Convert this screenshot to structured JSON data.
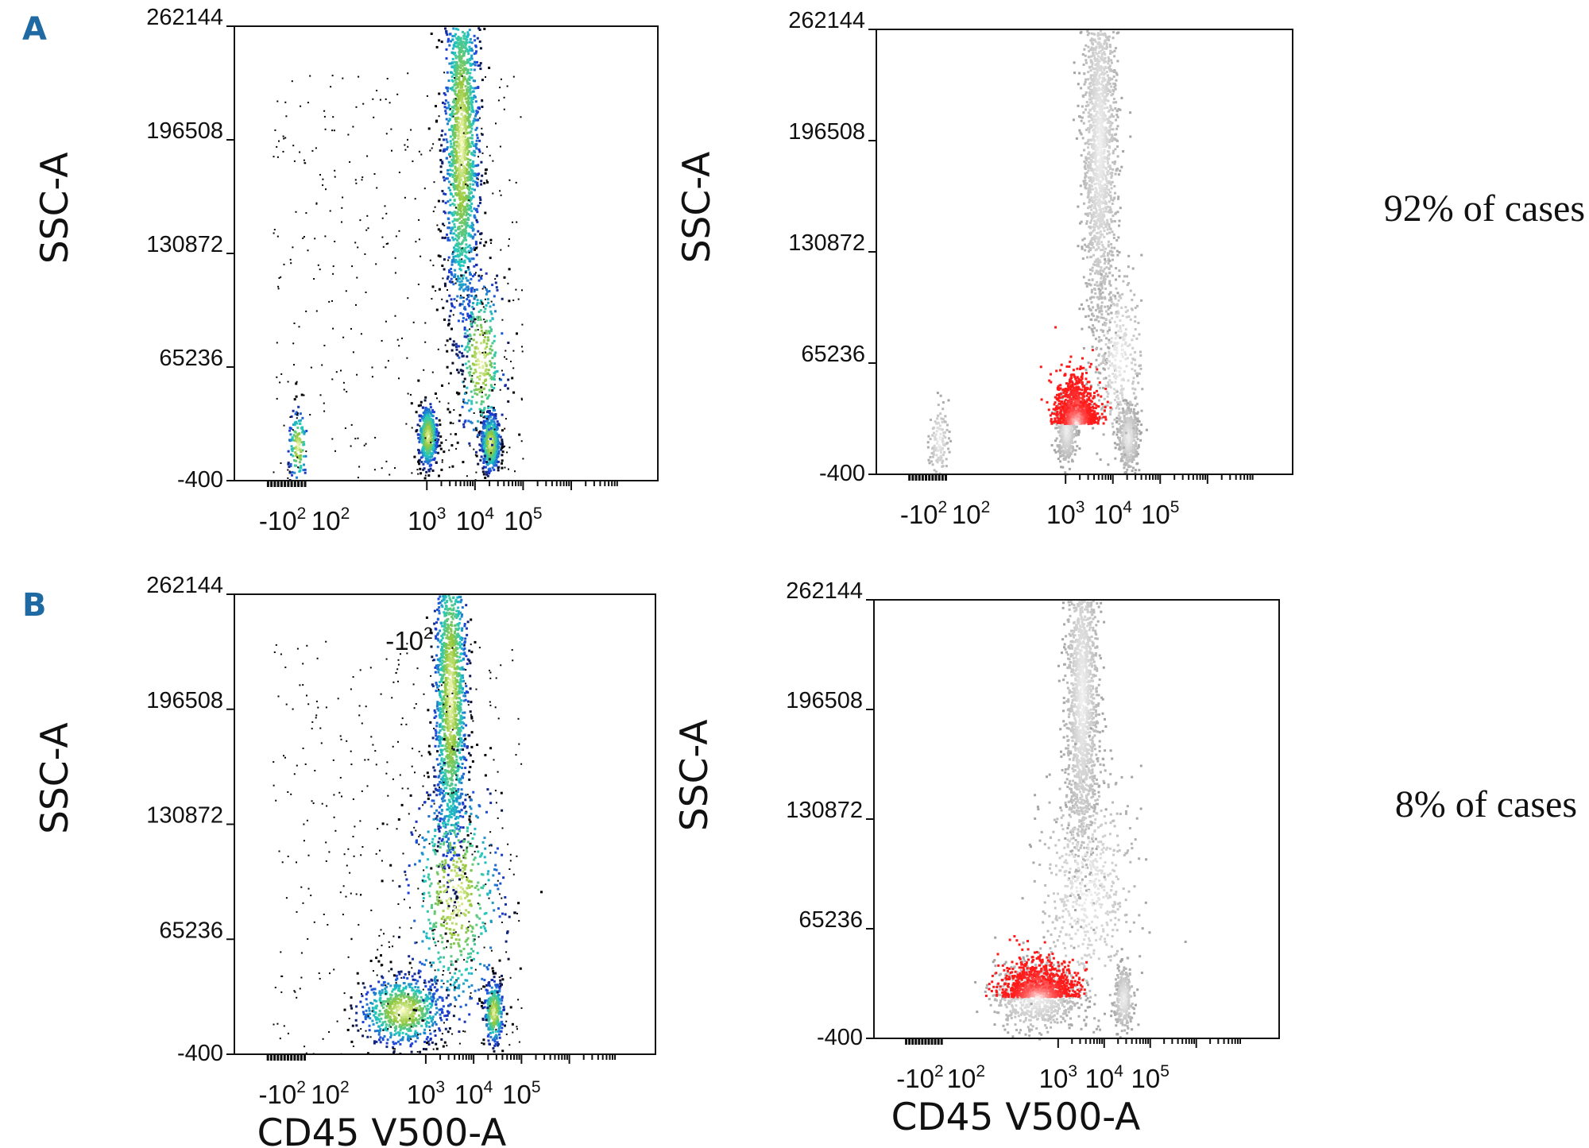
{
  "panels": [
    {
      "label": "A",
      "note": "92% of cases"
    },
    {
      "label": "B",
      "note": "8% of cases"
    }
  ],
  "chart_data": [
    {
      "type": "scatter",
      "panel": "A",
      "variant": "density",
      "xlabel": "",
      "ylabel": "SSC-A",
      "y_ticks": [
        "262144",
        "196508",
        "130872",
        "65236",
        "-400"
      ],
      "x_ticks": [
        {
          "base": "-10",
          "exp": "2"
        },
        {
          "base": "10",
          "exp": "2"
        },
        {
          "base": "10",
          "exp": "3"
        },
        {
          "base": "10",
          "exp": "4"
        },
        {
          "base": "10",
          "exp": "5"
        }
      ],
      "ylim": [
        -400,
        262144
      ],
      "colors": {
        "low": "#000000",
        "mid": "#1e3fdc",
        "high": "#20c8c0",
        "peak": "#ffffc8"
      },
      "populations": [
        {
          "cx": 1.7,
          "cy": 195000,
          "sx": 0.18,
          "sy": 55000,
          "weight": 0.55
        },
        {
          "cx": 1.0,
          "cy": 26000,
          "sx": 0.1,
          "sy": 9000,
          "weight": 0.15
        },
        {
          "cx": 2.3,
          "cy": 22000,
          "sx": 0.1,
          "sy": 8500,
          "weight": 0.16
        },
        {
          "cx": -1.7,
          "cy": 20000,
          "sx": 0.1,
          "sy": 11000,
          "weight": 0.04
        },
        {
          "cx": 2.1,
          "cy": 70000,
          "sx": 0.25,
          "sy": 25000,
          "weight": 0.1
        }
      ]
    },
    {
      "type": "scatter",
      "panel": "A",
      "variant": "overlay",
      "xlabel": "",
      "ylabel": "SSC-A",
      "y_ticks": [
        "262144",
        "196508",
        "130872",
        "65236",
        "-400"
      ],
      "x_ticks": [
        {
          "base": "-10",
          "exp": "2"
        },
        {
          "base": "10",
          "exp": "2"
        },
        {
          "base": "10",
          "exp": "3"
        },
        {
          "base": "10",
          "exp": "4"
        },
        {
          "base": "10",
          "exp": "5"
        }
      ],
      "ylim": [
        -400,
        262144
      ],
      "colors": {
        "background": "#a3a3a3",
        "highlight": "#ff1a1a"
      },
      "highlight": {
        "cx": 1.2,
        "cy": 30000,
        "sx": 0.22,
        "sy": 16000
      }
    },
    {
      "type": "scatter",
      "panel": "B",
      "variant": "density",
      "xlabel": "CD45 V500-A",
      "ylabel": "SSC-A",
      "y_ticks": [
        "262144",
        "196508",
        "130872",
        "65236",
        "-400"
      ],
      "x_ticks": [
        {
          "base": "-10",
          "exp": "2"
        },
        {
          "base": "10",
          "exp": "2"
        },
        {
          "base": "10",
          "exp": "3"
        },
        {
          "base": "10",
          "exp": "4"
        },
        {
          "base": "10",
          "exp": "5"
        }
      ],
      "stray_tick": {
        "base": "-10",
        "exp": "2"
      },
      "ylim": [
        -400,
        262144
      ],
      "colors": {
        "low": "#000000",
        "mid": "#1e3fdc",
        "high": "#20c8c0",
        "peak": "#ffffc8"
      },
      "populations": [
        {
          "cx": 1.5,
          "cy": 205000,
          "sx": 0.17,
          "sy": 50000,
          "weight": 0.5
        },
        {
          "cx": 0.5,
          "cy": 25000,
          "sx": 0.45,
          "sy": 10000,
          "weight": 0.22
        },
        {
          "cx": 2.4,
          "cy": 24000,
          "sx": 0.1,
          "sy": 9000,
          "weight": 0.1
        },
        {
          "cx": 1.6,
          "cy": 90000,
          "sx": 0.5,
          "sy": 35000,
          "weight": 0.18
        }
      ]
    },
    {
      "type": "scatter",
      "panel": "B",
      "variant": "overlay",
      "xlabel": "CD45 V500-A",
      "ylabel": "SSC-A",
      "y_ticks": [
        "262144",
        "196508",
        "130872",
        "65236",
        "-400"
      ],
      "x_ticks": [
        {
          "base": "-10",
          "exp": "2"
        },
        {
          "base": "10",
          "exp": "2"
        },
        {
          "base": "10",
          "exp": "3"
        },
        {
          "base": "10",
          "exp": "4"
        },
        {
          "base": "10",
          "exp": "5"
        }
      ],
      "ylim": [
        -400,
        262144
      ],
      "colors": {
        "background": "#a3a3a3",
        "highlight": "#ff1a1a"
      },
      "highlight": {
        "cx": 0.55,
        "cy": 25000,
        "sx": 0.42,
        "sy": 12000
      }
    }
  ]
}
